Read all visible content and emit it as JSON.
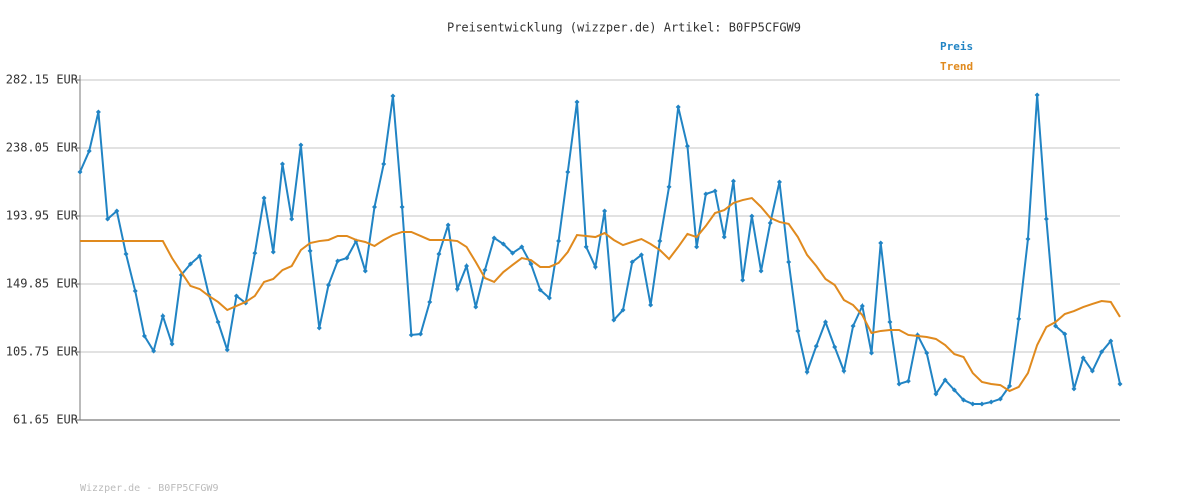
{
  "chart_data": {
    "type": "line",
    "title": "Preisentwicklung (wizzper.de) Artikel: B0FP5CFGW9",
    "footer": "Wizzper.de - B0FP5CFGW9",
    "ylim": [
      61.65,
      282.15
    ],
    "yticks": [
      {
        "value": 61.65,
        "label": "61.65 EUR"
      },
      {
        "value": 105.75,
        "label": "105.75 EUR"
      },
      {
        "value": 149.85,
        "label": "149.85 EUR"
      },
      {
        "value": 193.95,
        "label": "193.95 EUR"
      },
      {
        "value": 238.05,
        "label": "238.05 EUR"
      },
      {
        "value": 282.15,
        "label": "282.15 EUR"
      }
    ],
    "grid": true,
    "legend": "top-right",
    "series": [
      {
        "name": "Preis",
        "color": "#2184c4",
        "markers": true,
        "values": [
          222.5,
          236.1,
          261.4,
          192.0,
          197.2,
          169.3,
          145.3,
          116.1,
          106.4,
          129.1,
          110.9,
          155.7,
          162.8,
          168.0,
          142.7,
          125.2,
          107.1,
          142.1,
          137.5,
          169.9,
          205.6,
          170.6,
          227.7,
          192.0,
          240.0,
          171.3,
          121.3,
          149.2,
          164.8,
          166.7,
          177.7,
          158.3,
          199.8,
          227.7,
          271.8,
          199.8,
          116.8,
          117.4,
          138.2,
          169.3,
          188.1,
          146.6,
          161.5,
          134.9,
          158.9,
          179.7,
          175.8,
          169.9,
          173.9,
          162.8,
          146.0,
          140.8,
          177.7,
          222.5,
          267.9,
          173.9,
          160.9,
          197.2,
          126.5,
          133.0,
          164.1,
          168.7,
          136.2,
          177.7,
          212.8,
          264.6,
          239.3,
          173.9,
          208.2,
          210.2,
          180.3,
          216.6,
          152.4,
          193.9,
          158.3,
          189.4,
          216.0,
          164.1,
          119.4,
          92.8,
          109.6,
          125.2,
          109.0,
          93.4,
          122.6,
          135.6,
          105.1,
          176.4,
          125.2,
          85.0,
          86.9,
          116.8,
          105.1,
          78.5,
          87.6,
          81.1,
          74.6,
          72.0,
          72.0,
          73.3,
          75.3,
          83.7,
          127.2,
          179.0,
          272.4,
          192.0,
          122.6,
          117.4,
          81.8,
          101.9,
          93.4,
          105.8,
          112.9,
          85.0
        ]
      },
      {
        "name": "Trend",
        "color": "#e08a1e",
        "markers": false,
        "values": [
          177.7,
          177.7,
          177.7,
          177.7,
          177.7,
          177.7,
          177.7,
          177.7,
          177.7,
          177.7,
          166.7,
          157.6,
          148.6,
          146.6,
          142.1,
          138.2,
          133.0,
          135.6,
          138.2,
          142.1,
          151.2,
          153.1,
          158.9,
          161.5,
          171.9,
          176.4,
          177.7,
          178.4,
          181.0,
          181.0,
          178.4,
          177.1,
          174.5,
          178.4,
          181.6,
          183.6,
          183.6,
          181.0,
          178.4,
          178.4,
          178.4,
          177.7,
          173.9,
          164.1,
          153.7,
          151.2,
          157.6,
          162.2,
          166.7,
          165.4,
          160.9,
          160.9,
          163.5,
          170.6,
          181.6,
          181.0,
          180.3,
          182.9,
          178.4,
          175.1,
          177.1,
          179.0,
          175.8,
          171.9,
          166.1,
          173.9,
          182.3,
          180.3,
          187.5,
          195.9,
          197.8,
          202.4,
          204.3,
          205.6,
          199.8,
          192.7,
          190.1,
          188.8,
          180.3,
          168.7,
          161.5,
          153.1,
          149.2,
          139.5,
          136.2,
          129.7,
          118.1,
          119.4,
          120.0,
          120.0,
          116.8,
          116.1,
          115.5,
          114.2,
          110.3,
          104.4,
          102.5,
          92.1,
          86.3,
          85.0,
          84.3,
          80.5,
          83.1,
          92.1,
          110.3,
          122.0,
          125.2,
          130.4,
          132.3,
          134.9,
          136.9,
          138.8,
          138.2,
          128.5
        ]
      }
    ]
  }
}
